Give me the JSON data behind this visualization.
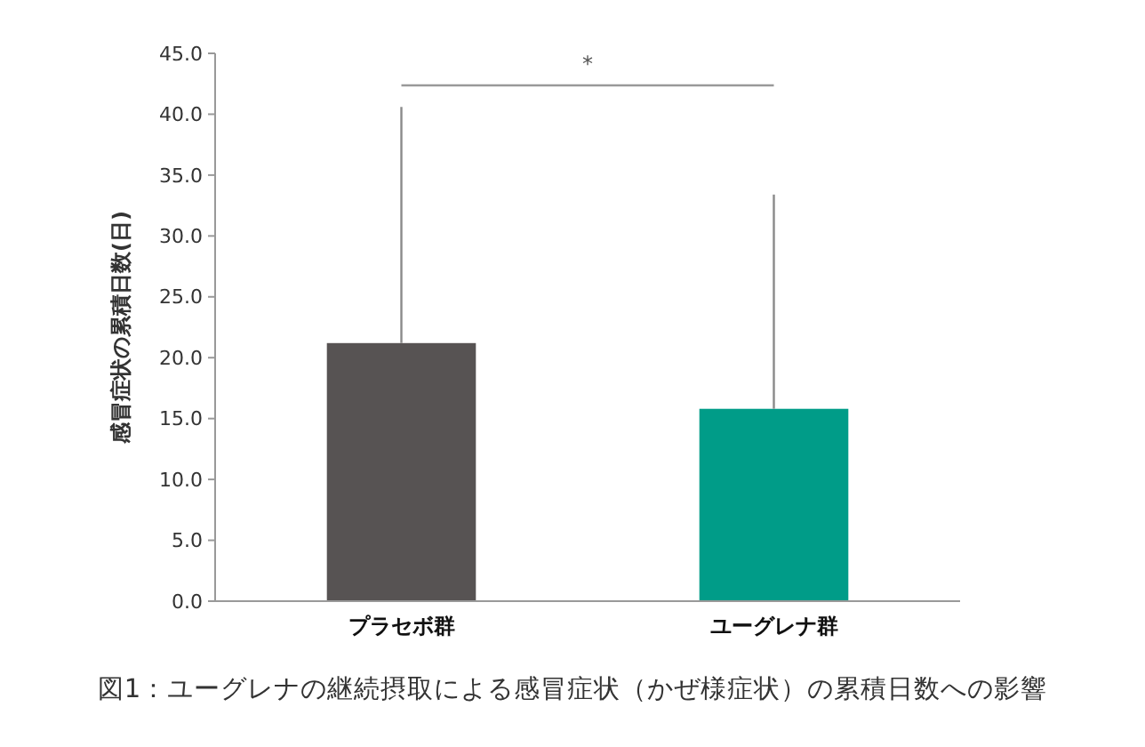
{
  "chart_data": {
    "type": "bar",
    "categories": [
      "プラセボ群",
      "ユーグレナ群"
    ],
    "values": [
      21.2,
      15.8
    ],
    "colors": [
      "#575353",
      "#009c88"
    ],
    "errors": [
      [
        21.2,
        40.6
      ],
      [
        15.8,
        33.4
      ]
    ],
    "ylabel": "感冒症状の累積日数(日)",
    "ylim": [
      0,
      45
    ],
    "yticks": [
      {
        "value": 0,
        "label": "0.0"
      },
      {
        "value": 5,
        "label": "5.0"
      },
      {
        "value": 10,
        "label": "10.0"
      },
      {
        "value": 15,
        "label": "15.0"
      },
      {
        "value": 20,
        "label": "20.0"
      },
      {
        "value": 25,
        "label": "25.0"
      },
      {
        "value": 30,
        "label": "30.0"
      },
      {
        "value": 35,
        "label": "35.0"
      },
      {
        "value": 40,
        "label": "40.0"
      },
      {
        "value": 45,
        "label": "45.0"
      }
    ],
    "grid": false,
    "annotations": [
      "*",
      "図1：ユーグレナの継続摂取による感冒症状（かぜ様症状）の累積日数への影響"
    ]
  }
}
